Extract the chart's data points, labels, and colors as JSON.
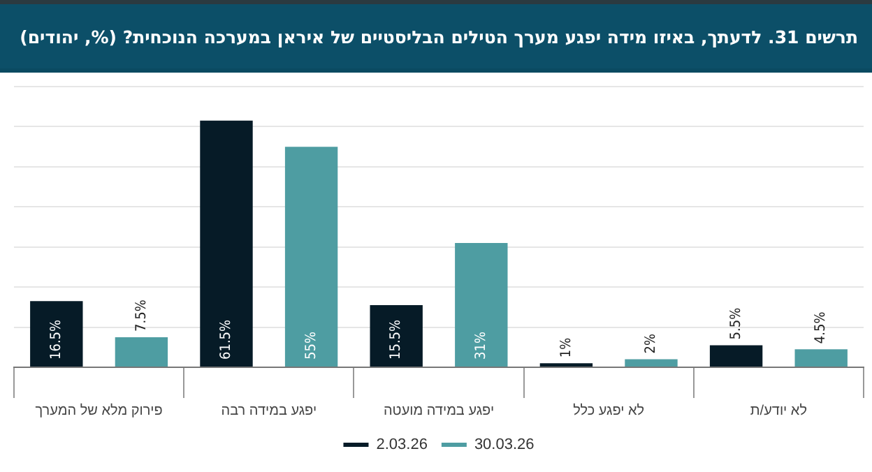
{
  "chart_data": {
    "type": "bar",
    "title": "תרשים 31. לדעתך, באיזו מידה יפגע מערך הטילים הבליסטיים של איראן במערכה הנוכחית? (%, יהודים)",
    "categories": [
      "פירוק מלא של המערך",
      "יפגע במידה רבה",
      "יפגע במידה מועטה",
      "לא יפגע כלל",
      "לא יודע/ת"
    ],
    "series": [
      {
        "name": "2.03.26",
        "color": "#061b27",
        "values": [
          16.5,
          61.5,
          15.5,
          1,
          5.5
        ],
        "value_labels": [
          "16.5%",
          "61.5%",
          "15.5%",
          "1%",
          "5.5%"
        ]
      },
      {
        "name": "30.03.26",
        "color": "#4e9da2",
        "values": [
          7.5,
          55,
          31,
          2,
          4.5
        ],
        "value_labels": [
          "7.5%",
          "55%",
          "31%",
          "2%",
          "4.5%"
        ]
      }
    ],
    "tick_labels": "x",
    "grid": "y",
    "legend": "bottom"
  }
}
